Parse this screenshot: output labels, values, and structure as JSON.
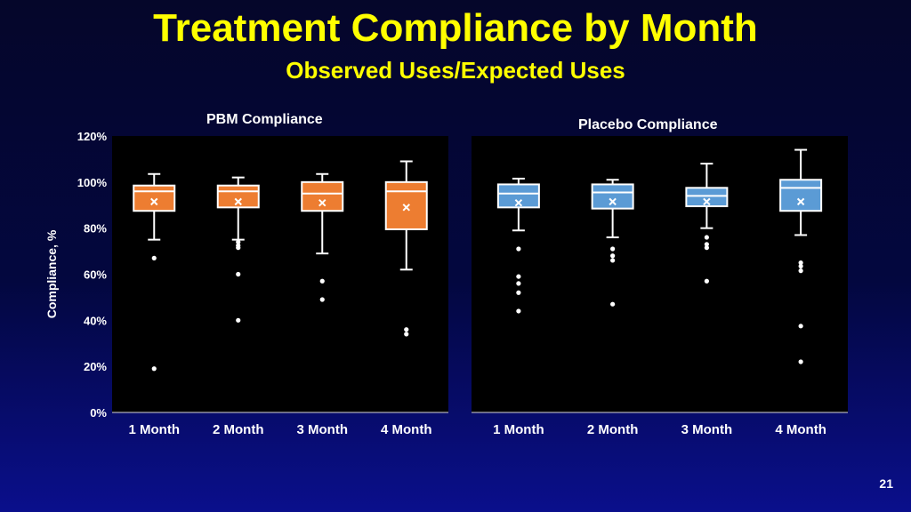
{
  "slide": {
    "title": "Treatment Compliance by Month",
    "subtitle": "Observed Uses/Expected Uses",
    "page_number": "21"
  },
  "chart_data": [
    {
      "type": "box",
      "title": "PBM Compliance",
      "ylabel": "Compliance, %",
      "ylim": [
        0,
        120
      ],
      "yticks": [
        0,
        20,
        40,
        60,
        80,
        100,
        120
      ],
      "ytick_labels": [
        "0%",
        "20%",
        "40%",
        "60%",
        "80%",
        "100%",
        "120%"
      ],
      "categories": [
        "1 Month",
        "2 Month",
        "3 Month",
        "4 Month"
      ],
      "box_color": "#ed7d31",
      "boxes": [
        {
          "min": 75,
          "q1": 87.5,
          "median": 96,
          "q3": 98.5,
          "max": 103.5,
          "mean": 91.5,
          "outliers": [
            67,
            19
          ]
        },
        {
          "min": 75,
          "q1": 89,
          "median": 96,
          "q3": 98.5,
          "max": 102,
          "mean": 91.5,
          "outliers": [
            74,
            72.5,
            71.5,
            60,
            40
          ]
        },
        {
          "min": 69,
          "q1": 87.5,
          "median": 95,
          "q3": 100,
          "max": 103.5,
          "mean": 91,
          "outliers": [
            57,
            49
          ]
        },
        {
          "min": 62,
          "q1": 79.5,
          "median": 96,
          "q3": 100,
          "max": 109,
          "mean": 89,
          "outliers": [
            36,
            34
          ]
        }
      ]
    },
    {
      "type": "box",
      "title": "Placebo Compliance",
      "ylim": [
        0,
        120
      ],
      "categories": [
        "1 Month",
        "2 Month",
        "3 Month",
        "4 Month"
      ],
      "box_color": "#5b9bd5",
      "boxes": [
        {
          "min": 79,
          "q1": 89,
          "median": 95,
          "q3": 99,
          "max": 101.5,
          "mean": 91,
          "outliers": [
            71,
            59,
            56,
            52,
            44
          ]
        },
        {
          "min": 76,
          "q1": 88.5,
          "median": 95.5,
          "q3": 99,
          "max": 101,
          "mean": 91.5,
          "outliers": [
            71,
            68,
            66,
            47
          ]
        },
        {
          "min": 80,
          "q1": 89.5,
          "median": 94,
          "q3": 97.5,
          "max": 108,
          "mean": 91.5,
          "outliers": [
            76,
            73,
            71.5,
            57
          ]
        },
        {
          "min": 77,
          "q1": 87.5,
          "median": 97.5,
          "q3": 101,
          "max": 114,
          "mean": 91.5,
          "outliers": [
            65,
            63.5,
            61.5,
            37.5,
            22
          ]
        }
      ]
    }
  ]
}
